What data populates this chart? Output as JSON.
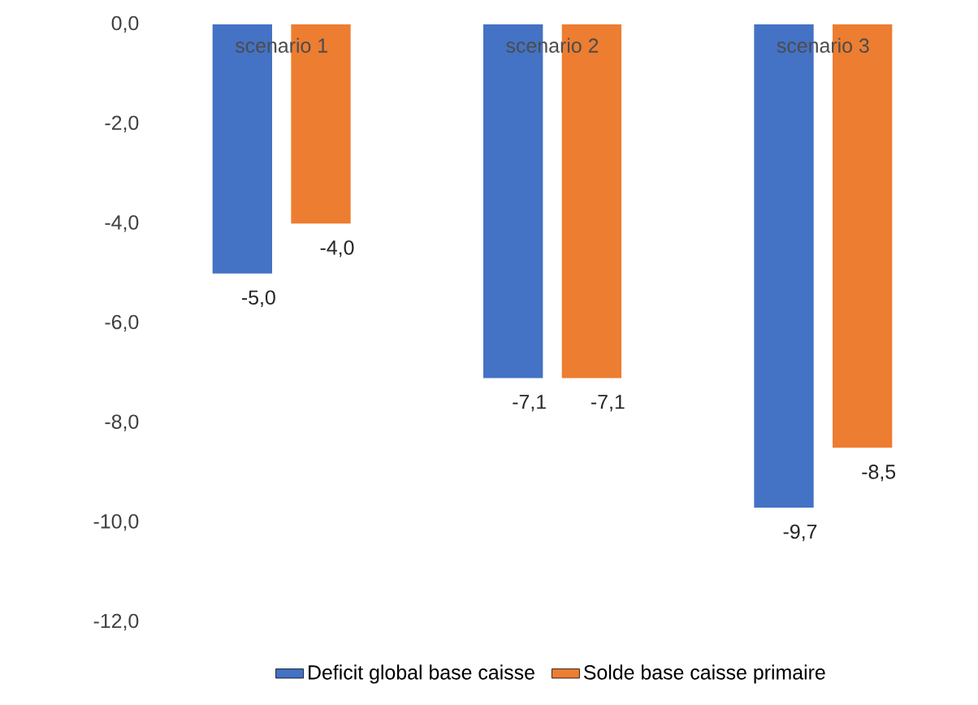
{
  "chart_data": {
    "type": "bar",
    "categories": [
      "scenario 1",
      "scenario 2",
      "scenario 3"
    ],
    "series": [
      {
        "name": "Deficit global base caisse",
        "color": "#4472c4",
        "values": [
          -5.0,
          -7.1,
          -9.7
        ],
        "value_labels": [
          "-5,0",
          "-7,1",
          "-9,7"
        ]
      },
      {
        "name": "Solde base caisse primaire",
        "color": "#ed7d31",
        "values": [
          -4.0,
          -7.1,
          -8.5
        ],
        "value_labels": [
          "-4,0",
          "-7,1",
          "-8,5"
        ]
      }
    ],
    "ylim": [
      -12,
      0
    ],
    "yticks": [
      {
        "value": 0,
        "label": "0,0"
      },
      {
        "value": -2,
        "label": "-2,0"
      },
      {
        "value": -4,
        "label": "-4,0"
      },
      {
        "value": -6,
        "label": "-6,0"
      },
      {
        "value": -8,
        "label": "-8,0"
      },
      {
        "value": -10,
        "label": "-10,0"
      },
      {
        "value": -12,
        "label": "-12,0"
      }
    ],
    "legend": "bottom"
  }
}
